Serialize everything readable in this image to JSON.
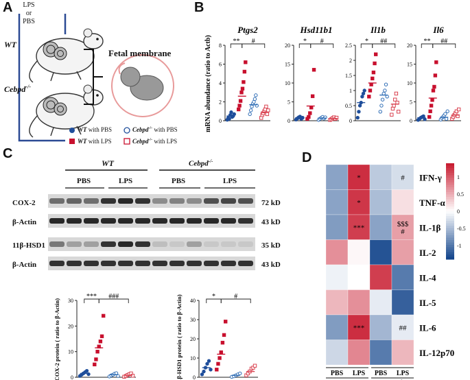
{
  "panels": {
    "A": "A",
    "B": "B",
    "C": "C",
    "D": "D"
  },
  "panel_a": {
    "treatment": [
      "LPS",
      "or",
      "PBS"
    ],
    "genotype_wt": "WT",
    "genotype_ko": "Cebpd",
    "ko_superscript": "-/-",
    "fetal_membrane": "Fetal membrane",
    "legend": [
      {
        "marker": "filled-circle",
        "color": "#1f4e9b",
        "genotype": "WT",
        "text": " with PBS"
      },
      {
        "marker": "filled-square",
        "color": "#c8102e",
        "genotype": "WT",
        "text": " with LPS"
      },
      {
        "marker": "open-circle",
        "color": "#1f4e9b",
        "genotype": "Cebpd",
        "sup": "-/-",
        "text": " with PBS"
      },
      {
        "marker": "open-square",
        "color": "#c8102e",
        "genotype": "Cebpd",
        "sup": "-/-",
        "text": " with LPS"
      }
    ]
  },
  "colors": {
    "wt_pbs": "#1f4e9b",
    "wt_lps": "#c8102e",
    "ko_pbs": "#2f6db5",
    "ko_lps": "#d9414f"
  },
  "chart_data": [
    {
      "type": "scatter",
      "title": "Ptgs2",
      "ylabel": "mRNA abundance (ratio to Actb)",
      "ylim": [
        0,
        8
      ],
      "yticks": [
        0,
        2,
        4,
        6,
        8
      ],
      "groups": [
        {
          "name": "WT with PBS",
          "mean": 0.5,
          "points": [
            0.1,
            0.3,
            0.2,
            0.6,
            0.9,
            0.4,
            0.5,
            0.7
          ]
        },
        {
          "name": "WT with LPS",
          "mean": 2.6,
          "points": [
            1.2,
            1.6,
            2.1,
            3.0,
            3.4,
            4.1,
            5.2,
            6.2
          ]
        },
        {
          "name": "Cebpd-/- with PBS",
          "mean": 1.7,
          "points": [
            0.7,
            1.1,
            1.5,
            1.8,
            2.0,
            2.3,
            2.7,
            1.6
          ]
        },
        {
          "name": "Cebpd-/- with LPS",
          "mean": 0.9,
          "points": [
            0.3,
            0.6,
            0.8,
            1.0,
            1.2,
            1.5,
            0.7,
            1.1
          ]
        }
      ],
      "annotations": [
        "**",
        "#"
      ]
    },
    {
      "type": "scatter",
      "title": "Hsd11b1",
      "ylim": [
        0,
        20
      ],
      "yticks": [
        0,
        5,
        10,
        15,
        20
      ],
      "groups": [
        {
          "name": "WT with PBS",
          "mean": 0.8,
          "points": [
            0.3,
            0.6,
            0.9,
            1.1,
            0.5,
            0.8
          ]
        },
        {
          "name": "WT with LPS",
          "mean": 3.9,
          "points": [
            0.5,
            1.0,
            2.0,
            3.5,
            6.5,
            13.5
          ]
        },
        {
          "name": "Cebpd-/- with PBS",
          "mean": 0.7,
          "points": [
            0.2,
            0.5,
            0.8,
            1.0,
            0.6,
            0.9
          ]
        },
        {
          "name": "Cebpd-/- with LPS",
          "mean": 0.6,
          "points": [
            0.2,
            0.4,
            0.7,
            0.9,
            0.5,
            0.8
          ]
        }
      ],
      "annotations": [
        "*",
        "#"
      ]
    },
    {
      "type": "scatter",
      "title": "Il1b",
      "ylim": [
        0,
        2.5
      ],
      "yticks": [
        0.0,
        0.5,
        1.0,
        1.5,
        2.0,
        2.5
      ],
      "groups": [
        {
          "name": "WT with PBS",
          "mean": 0.6,
          "points": [
            0.1,
            0.3,
            0.5,
            0.6,
            0.8,
            0.9,
            1.0
          ]
        },
        {
          "name": "WT with LPS",
          "mean": 1.25,
          "points": [
            0.8,
            1.0,
            1.2,
            1.4,
            1.6,
            1.9,
            2.2
          ]
        },
        {
          "name": "Cebpd-/- with PBS",
          "mean": 0.85,
          "points": [
            0.3,
            0.5,
            0.7,
            0.9,
            1.0,
            1.2,
            0.8
          ]
        },
        {
          "name": "Cebpd-/- with LPS",
          "mean": 0.55,
          "points": [
            0.2,
            0.4,
            0.5,
            0.7,
            0.9,
            0.6,
            0.3
          ]
        }
      ],
      "annotations": [
        "*",
        "##"
      ]
    },
    {
      "type": "scatter",
      "title": "Il6",
      "ylim": [
        0,
        20
      ],
      "yticks": [
        0,
        5,
        10,
        15,
        20
      ],
      "groups": [
        {
          "name": "WT with PBS",
          "mean": 0.8,
          "points": [
            0.2,
            0.5,
            0.8,
            1.0,
            1.2,
            0.4
          ]
        },
        {
          "name": "WT with LPS",
          "mean": 6.0,
          "points": [
            1.0,
            2.5,
            4.0,
            5.5,
            8.0,
            9.0,
            12.0,
            15.5
          ]
        },
        {
          "name": "Cebpd-/- with PBS",
          "mean": 0.9,
          "points": [
            0.3,
            0.7,
            1.0,
            1.4,
            1.8,
            0.5,
            2.5
          ]
        },
        {
          "name": "Cebpd-/- with LPS",
          "mean": 1.5,
          "points": [
            0.5,
            1.0,
            1.5,
            2.0,
            2.5,
            1.2,
            3.0
          ]
        }
      ],
      "annotations": [
        "**",
        "##"
      ]
    },
    {
      "type": "scatter",
      "ylabel": "COX-2 protein ( ratio to β-Actin)",
      "ylim": [
        0,
        30
      ],
      "yticks": [
        0,
        10,
        20,
        30
      ],
      "groups": [
        {
          "name": "WT with PBS",
          "mean": 1.5,
          "points": [
            0.5,
            1.0,
            1.5,
            2.0,
            2.5,
            1.2
          ]
        },
        {
          "name": "WT with LPS",
          "mean": 11.5,
          "points": [
            5.0,
            7.0,
            10.0,
            12.0,
            14.0,
            16.0,
            24.0
          ]
        },
        {
          "name": "Cebpd-/- with PBS",
          "mean": 1.0,
          "points": [
            0.3,
            0.7,
            1.0,
            1.4,
            1.6,
            0.5
          ]
        },
        {
          "name": "Cebpd-/- with LPS",
          "mean": 0.8,
          "points": [
            0.2,
            0.5,
            0.9,
            1.2,
            1.5,
            0.6
          ]
        }
      ],
      "annotations": [
        "***",
        "###"
      ]
    },
    {
      "type": "scatter",
      "ylabel": "11β-HSD1 protein ( ratio to β-Actin)",
      "ylim": [
        0,
        40
      ],
      "yticks": [
        0,
        10,
        20,
        30,
        40
      ],
      "groups": [
        {
          "name": "WT with PBS",
          "mean": 5.0,
          "points": [
            1.5,
            3.0,
            5.0,
            7.0,
            8.5,
            4.0
          ]
        },
        {
          "name": "WT with LPS",
          "mean": 12.0,
          "points": [
            4.0,
            7.0,
            10.0,
            13.0,
            18.0,
            22.0,
            29.0
          ]
        },
        {
          "name": "Cebpd-/- with PBS",
          "mean": 1.0,
          "points": [
            0.2,
            0.5,
            1.0,
            1.5,
            2.0
          ]
        },
        {
          "name": "Cebpd-/- with LPS",
          "mean": 3.0,
          "points": [
            1.0,
            2.0,
            3.0,
            4.5,
            5.0,
            6.0
          ]
        }
      ],
      "annotations": [
        "*",
        "#"
      ]
    },
    {
      "type": "heatmap",
      "rows": [
        "IFN-γ",
        "TNF-α",
        "IL-1β",
        "IL-2",
        "IL-4",
        "IL-5",
        "IL-6",
        "IL-12p70"
      ],
      "cols": [
        "PBS",
        "LPS",
        "PBS",
        "LPS"
      ],
      "col_groups": [
        {
          "label": "WT",
          "span": 2
        },
        {
          "label": "Cebpd",
          "sup": "-/-",
          "span": 2
        }
      ],
      "colorbar_ticks": [
        1,
        0.5,
        0,
        -0.5,
        -1
      ],
      "values": [
        [
          -0.7,
          1.3,
          -0.4,
          -0.25
        ],
        [
          -0.7,
          1.25,
          -0.5,
          0.2
        ],
        [
          -0.75,
          1.2,
          -0.7,
          0.6
        ],
        [
          0.7,
          0.05,
          -1.3,
          0.6
        ],
        [
          -0.1,
          0.0,
          1.2,
          -1.0
        ],
        [
          0.45,
          0.7,
          -0.15,
          -1.2
        ],
        [
          -0.75,
          1.3,
          -0.55,
          -0.15
        ],
        [
          -0.3,
          0.75,
          -1.0,
          0.45
        ]
      ],
      "cell_labels": [
        [
          "",
          "*",
          "",
          "#"
        ],
        [
          "",
          "*",
          "",
          ""
        ],
        [
          "",
          "***",
          "",
          "$$$\n#"
        ],
        [
          "",
          "",
          "",
          ""
        ],
        [
          "",
          "",
          "",
          ""
        ],
        [
          "",
          "",
          "",
          ""
        ],
        [
          "",
          "***",
          "",
          "##"
        ],
        [
          "",
          "",
          "",
          ""
        ]
      ]
    }
  ],
  "western": {
    "wt_label": "WT",
    "ko_label": "Cebpd",
    "ko_sup": "-/-",
    "treatments": [
      "PBS",
      "LPS",
      "PBS",
      "LPS"
    ],
    "rows": [
      {
        "name": "COX-2",
        "size": "72 kD"
      },
      {
        "name": "β-Actin",
        "size": "43 kD"
      },
      {
        "name": "11β-HSD1",
        "size": "35 kD"
      },
      {
        "name": "β-Actin",
        "size": "43 kD"
      }
    ]
  }
}
